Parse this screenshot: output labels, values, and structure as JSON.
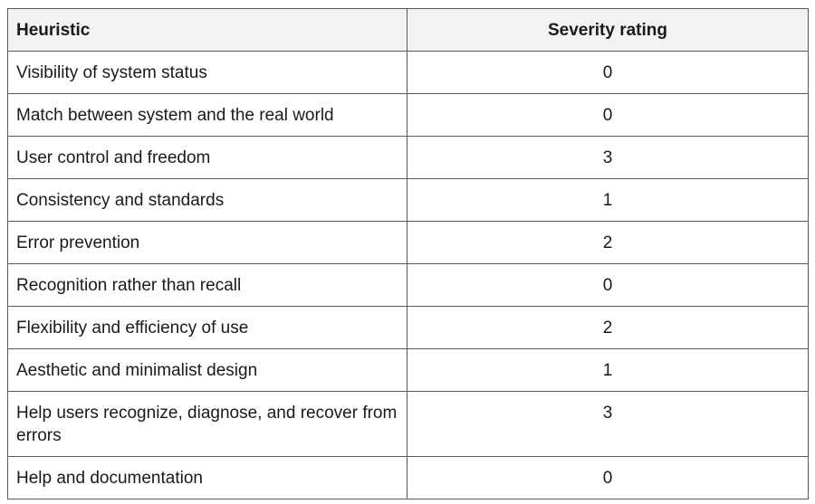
{
  "table": {
    "headers": {
      "heuristic": "Heuristic",
      "severity": "Severity rating"
    },
    "rows": [
      {
        "heuristic": "Visibility of system status",
        "severity": "0"
      },
      {
        "heuristic": "Match between system and the real world",
        "severity": "0"
      },
      {
        "heuristic": "User control and freedom",
        "severity": "3"
      },
      {
        "heuristic": "Consistency and standards",
        "severity": "1"
      },
      {
        "heuristic": "Error prevention",
        "severity": "2"
      },
      {
        "heuristic": "Recognition rather than recall",
        "severity": "0"
      },
      {
        "heuristic": "Flexibility and efficiency of use",
        "severity": "2"
      },
      {
        "heuristic": "Aesthetic and minimalist design",
        "severity": "1"
      },
      {
        "heuristic": "Help users recognize, diagnose, and recover from errors",
        "severity": "3"
      },
      {
        "heuristic": "Help and documentation",
        "severity": "0"
      }
    ]
  }
}
